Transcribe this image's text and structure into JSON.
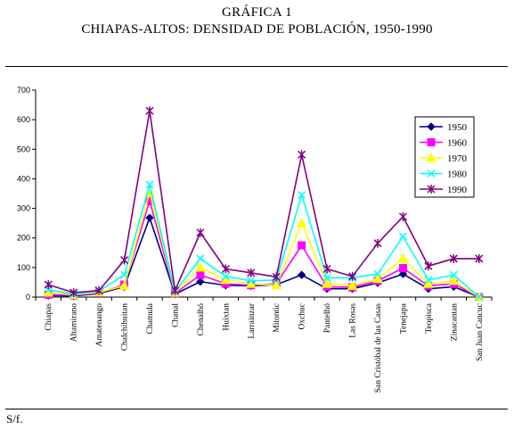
{
  "title": "GRÁFICA 1",
  "subtitle": "CHIAPAS-ALTOS: DENSIDAD DE POBLACIÓN, 1950-1990",
  "source_note": "S/f.",
  "chart_data": {
    "type": "line",
    "title": "",
    "xlabel": "",
    "ylabel": "",
    "ylim": [
      0,
      700
    ],
    "yticks": [
      0,
      100,
      200,
      300,
      400,
      500,
      600,
      700
    ],
    "grid": false,
    "legend_position": "right",
    "categories": [
      "Chiapas",
      "Altamirano",
      "Amatenango",
      "Chalchihuitan",
      "Chamula",
      "Chanal",
      "Chenalhó",
      "Huixtan",
      "Larrainzar",
      "Mitontic",
      "Oxchuc",
      "Pantelhó",
      "Las Rosas",
      "San Cristóbal de las Casas",
      "Tenejapa",
      "Teopisca",
      "Zinacantan",
      "San Juan Cancuc"
    ],
    "series": [
      {
        "name": "1950",
        "color": "#000080",
        "marker": "diamond",
        "values": [
          5,
          4,
          12,
          35,
          268,
          10,
          52,
          40,
          38,
          42,
          75,
          28,
          28,
          48,
          78,
          28,
          35,
          0
        ]
      },
      {
        "name": "1960",
        "color": "#ff00ff",
        "marker": "square",
        "values": [
          8,
          6,
          14,
          42,
          325,
          12,
          75,
          45,
          40,
          45,
          175,
          35,
          33,
          55,
          98,
          38,
          45,
          0
        ]
      },
      {
        "name": "1970",
        "color": "#ffff00",
        "marker": "triangle",
        "values": [
          15,
          8,
          16,
          38,
          355,
          15,
          100,
          58,
          45,
          40,
          250,
          45,
          38,
          62,
          130,
          45,
          55,
          0
        ]
      },
      {
        "name": "1980",
        "color": "#00ffff",
        "marker": "x",
        "values": [
          25,
          10,
          20,
          75,
          380,
          18,
          130,
          70,
          55,
          58,
          345,
          65,
          65,
          78,
          205,
          58,
          75,
          0
        ]
      },
      {
        "name": "1990",
        "color": "#800080",
        "marker": "star",
        "values": [
          42,
          15,
          22,
          125,
          630,
          22,
          218,
          95,
          82,
          68,
          482,
          95,
          70,
          182,
          272,
          105,
          130,
          130
        ]
      }
    ]
  }
}
